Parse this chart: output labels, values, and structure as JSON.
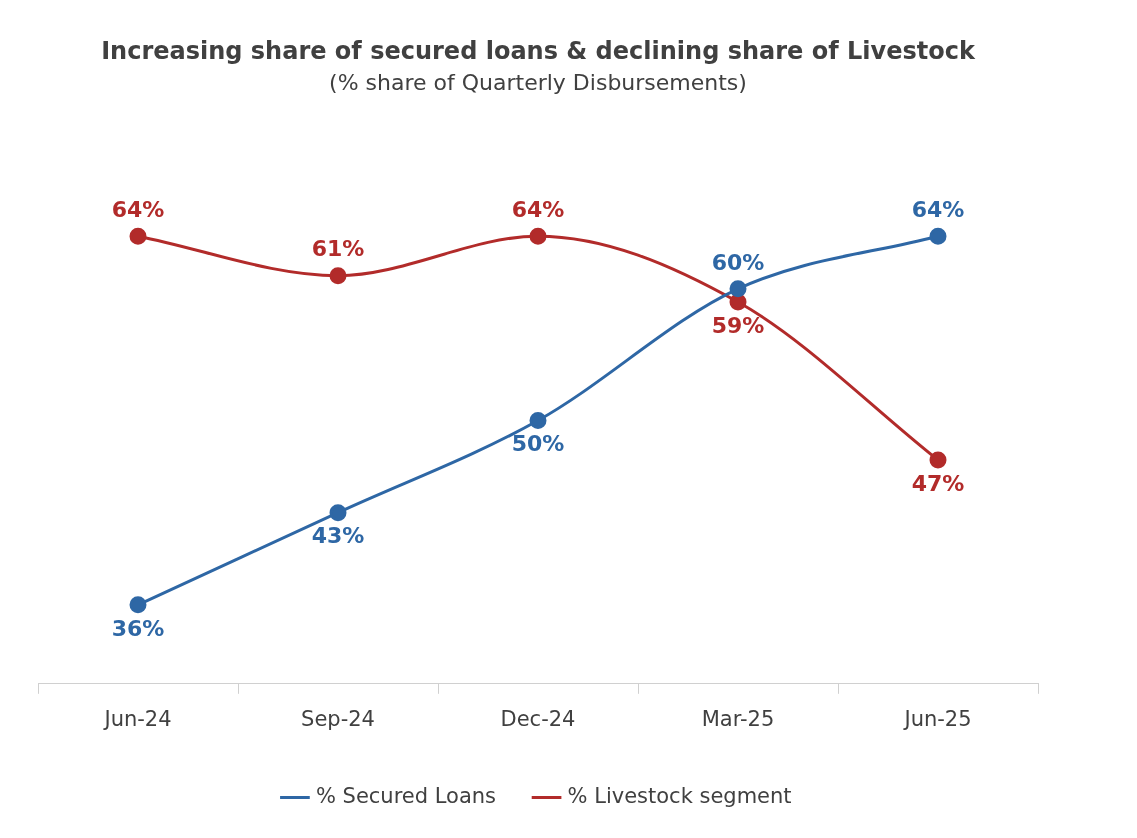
{
  "chart_data": {
    "type": "line",
    "title": "Increasing share of secured loans & declining share of Livestock",
    "subtitle": "(% share of Quarterly Disbursements)",
    "categories": [
      "Jun-24",
      "Sep-24",
      "Dec-24",
      "Mar-25",
      "Jun-25"
    ],
    "series": [
      {
        "name": "% Secured Loans",
        "color": "#2e67a5",
        "values": [
          36,
          43,
          50,
          60,
          64
        ],
        "value_labels": [
          "36%",
          "43%",
          "50%",
          "60%",
          "64%"
        ]
      },
      {
        "name": "% Livestock segment",
        "color": "#b22b2a",
        "values": [
          64,
          61,
          64,
          59,
          47
        ],
        "value_labels": [
          "64%",
          "61%",
          "64%",
          "59%",
          "47%"
        ]
      }
    ],
    "marker": "circle",
    "grid": false,
    "legend": "bottom"
  }
}
